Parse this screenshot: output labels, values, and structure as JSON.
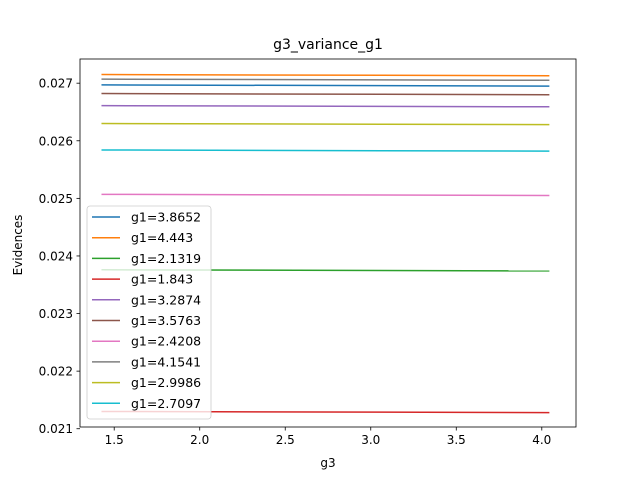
{
  "chart_data": {
    "type": "line",
    "title": "g3_variance_g1",
    "xlabel": "g3",
    "ylabel": "Evidences",
    "xlim": [
      1.3,
      4.2
    ],
    "ylim": [
      0.02103,
      0.02742
    ],
    "xticks": [
      1.5,
      2.0,
      2.5,
      3.0,
      3.5,
      4.0
    ],
    "xtick_labels": [
      "1.5",
      "2.0",
      "2.5",
      "3.0",
      "3.5",
      "4.0"
    ],
    "yticks": [
      0.021,
      0.022,
      0.023,
      0.024,
      0.025,
      0.026,
      0.027
    ],
    "ytick_labels": [
      "0.021",
      "0.022",
      "0.023",
      "0.024",
      "0.025",
      "0.026",
      "0.027"
    ],
    "grid": false,
    "legend_position": "lower-left",
    "x": [
      1.43,
      4.04
    ],
    "series": [
      {
        "name": "g1=3.8652",
        "color": "#1f77b4",
        "values": [
          0.02697,
          0.02695
        ]
      },
      {
        "name": "g1=4.443",
        "color": "#ff7f0e",
        "values": [
          0.02715,
          0.02713
        ]
      },
      {
        "name": "g1=2.1319",
        "color": "#2ca02c",
        "values": [
          0.02376,
          0.02374
        ]
      },
      {
        "name": "g1=1.843",
        "color": "#d62728",
        "values": [
          0.0213,
          0.02128
        ]
      },
      {
        "name": "g1=3.2874",
        "color": "#9467bd",
        "values": [
          0.02661,
          0.02659
        ]
      },
      {
        "name": "g1=3.5763",
        "color": "#8c564b",
        "values": [
          0.02682,
          0.0268
        ]
      },
      {
        "name": "g1=2.4208",
        "color": "#e377c2",
        "values": [
          0.02507,
          0.02505
        ]
      },
      {
        "name": "g1=4.1541",
        "color": "#7f7f7f",
        "values": [
          0.02707,
          0.02705
        ]
      },
      {
        "name": "g1=2.9986",
        "color": "#bcbd22",
        "values": [
          0.0263,
          0.02628
        ]
      },
      {
        "name": "g1=2.7097",
        "color": "#17becf",
        "values": [
          0.02584,
          0.02582
        ]
      }
    ]
  }
}
